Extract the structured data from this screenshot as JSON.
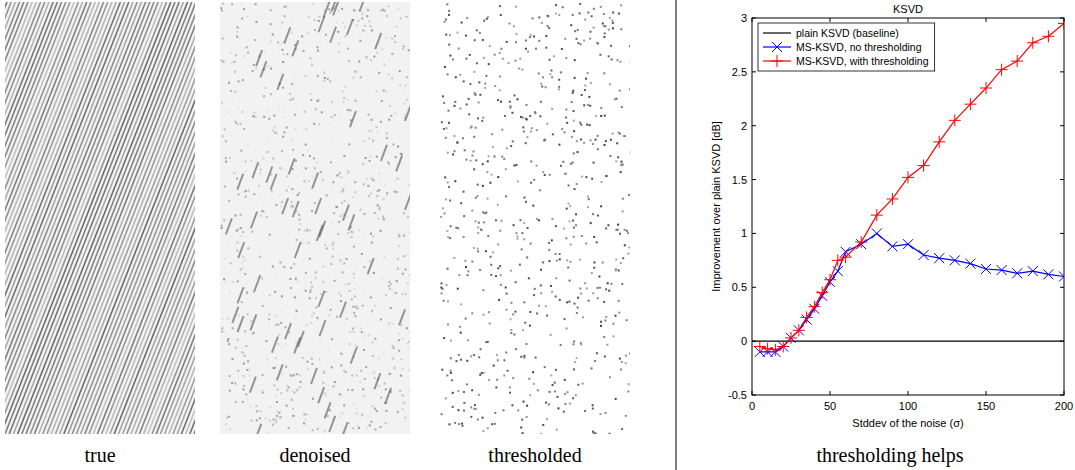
{
  "panels": [
    {
      "caption": "true"
    },
    {
      "caption": "denoised"
    },
    {
      "caption": "thresholded"
    }
  ],
  "caption": "thresholding helps",
  "chart_data": {
    "type": "line",
    "title": "KSVD",
    "x_label": "Stddev of the noise (σ)",
    "y_label": "Improvement over plain KSVD [dB]",
    "xlim": [
      0,
      200
    ],
    "xticks": [
      0,
      50,
      100,
      150,
      200
    ],
    "ylim": [
      -0.5,
      3
    ],
    "yticks": [
      -0.5,
      0,
      0.5,
      1,
      1.5,
      2,
      2.5,
      3
    ],
    "legend": "upper left",
    "grid": false,
    "series": [
      {
        "name": "plain KSVD (baseline)",
        "color": "#000000",
        "marker": "none",
        "line_style": "solid",
        "x": [
          0,
          200
        ],
        "values": [
          0,
          0
        ]
      },
      {
        "name": "MS-KSVD, no thresholding",
        "color": "#0000ff",
        "marker": "x",
        "line_style": "solid",
        "x": [
          5,
          10,
          15,
          20,
          25,
          30,
          35,
          40,
          45,
          50,
          55,
          60,
          70,
          80,
          90,
          100,
          110,
          120,
          130,
          140,
          150,
          160,
          170,
          180,
          190,
          200
        ],
        "values": [
          -0.1,
          -0.1,
          -0.1,
          -0.05,
          0.03,
          0.1,
          0.2,
          0.3,
          0.42,
          0.55,
          0.65,
          0.83,
          0.9,
          1.0,
          0.88,
          0.9,
          0.8,
          0.77,
          0.75,
          0.72,
          0.67,
          0.66,
          0.63,
          0.65,
          0.62,
          0.6
        ]
      },
      {
        "name": "MS-KSVD, with thresholding",
        "color": "#ff0000",
        "marker": "+",
        "line_style": "solid",
        "x": [
          5,
          10,
          15,
          20,
          25,
          30,
          35,
          40,
          45,
          50,
          55,
          60,
          70,
          80,
          90,
          100,
          110,
          120,
          130,
          140,
          150,
          160,
          170,
          180,
          190,
          200
        ],
        "values": [
          -0.05,
          -0.07,
          -0.08,
          -0.05,
          0.03,
          0.1,
          0.22,
          0.32,
          0.45,
          0.57,
          0.75,
          0.78,
          0.92,
          1.17,
          1.32,
          1.52,
          1.63,
          1.85,
          2.05,
          2.2,
          2.35,
          2.52,
          2.6,
          2.77,
          2.83,
          2.95
        ]
      }
    ]
  }
}
